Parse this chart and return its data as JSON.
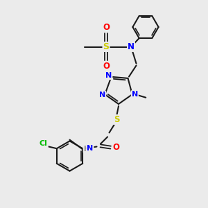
{
  "bg_color": "#ebebeb",
  "bond_color": "#1a1a1a",
  "atom_colors": {
    "N": "#0000ff",
    "S": "#cccc00",
    "O": "#ff0000",
    "Cl": "#00bb00",
    "C": "#1a1a1a",
    "H": "#888888"
  },
  "fig_size": [
    3.0,
    3.0
  ],
  "dpi": 100
}
